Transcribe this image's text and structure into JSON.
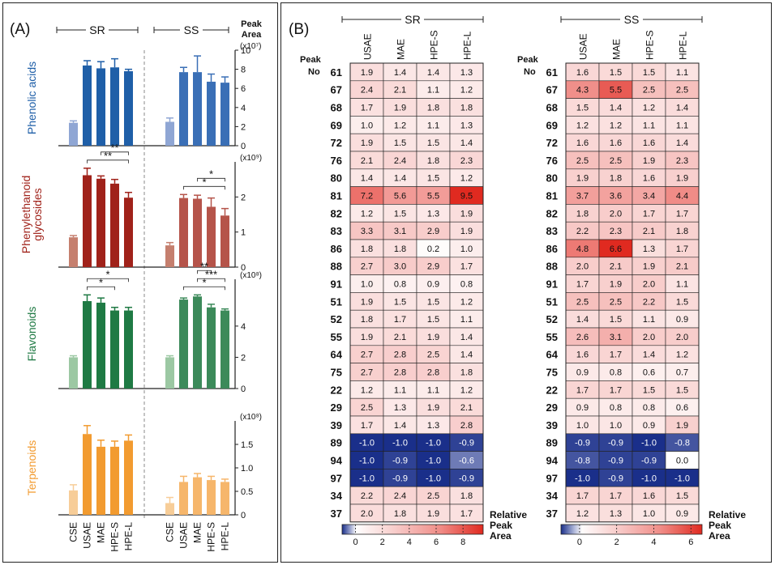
{
  "panel_a": {
    "label": "(A)",
    "group_left": "SR",
    "group_right": "SS",
    "peak_area_label": [
      "Peak",
      "Area"
    ],
    "x_labels": [
      "CSE",
      "USAE",
      "MAE",
      "HPE-S",
      "HPE-L",
      "CSE",
      "USAE",
      "MAE",
      "HPE-S",
      "HPE-L"
    ]
  },
  "colors": {
    "phenolic": "#1f5fa8",
    "phenolic_light": "#8fa6d4",
    "phenolic_ss": "#3a6fb6",
    "phenyl": "#a0221a",
    "phenyl_light": "#c57f6e",
    "phenyl_ss": "#b5544a",
    "flavonoid": "#1f7a44",
    "flavonoid_light": "#9cc8a3",
    "flavonoid_ss": "#3c8a5a",
    "terpenoid": "#f29b30",
    "terpenoid_light": "#f7cd98",
    "terpenoid_ss": "#f6b66b",
    "heat_low": "#1a2f8a",
    "heat_high": "#e02a20"
  },
  "chart_data": [
    {
      "type": "bar",
      "title": "Phenolic acids",
      "ylabel": "(x10⁷)",
      "ylim": [
        0,
        10
      ],
      "yticks": [
        0,
        2,
        4,
        6,
        8,
        10
      ],
      "ytick_labels": [
        "0",
        "2",
        "4",
        "6",
        "8",
        "10"
      ],
      "categories": [
        "CSE",
        "USAE",
        "MAE",
        "HPE-S",
        "HPE-L"
      ],
      "series": [
        {
          "name": "SR",
          "values": [
            2.4,
            8.4,
            8.1,
            8.2,
            7.8
          ],
          "errors": [
            0.2,
            0.5,
            0.7,
            0.9,
            0.2
          ]
        },
        {
          "name": "SS",
          "values": [
            2.5,
            7.7,
            7.7,
            6.7,
            6.6
          ],
          "errors": [
            0.4,
            0.5,
            1.7,
            0.8,
            0.6
          ]
        }
      ],
      "significance": []
    },
    {
      "type": "bar",
      "title": "Phenylethanoid glycosides",
      "title_lines": [
        "Phenylethanoid",
        "glycosides"
      ],
      "ylabel": "(x10⁹)",
      "ylim": [
        0,
        3
      ],
      "yticks": [
        0,
        1,
        2
      ],
      "ytick_labels": [
        "0",
        "1",
        "2"
      ],
      "categories": [
        "CSE",
        "USAE",
        "MAE",
        "HPE-S",
        "HPE-L"
      ],
      "series": [
        {
          "name": "SR",
          "values": [
            0.85,
            2.62,
            2.52,
            2.38,
            1.98
          ],
          "errors": [
            0.05,
            0.2,
            0.08,
            0.12,
            0.15
          ]
        },
        {
          "name": "SS",
          "values": [
            0.62,
            1.97,
            1.95,
            1.72,
            1.47
          ],
          "errors": [
            0.08,
            0.1,
            0.1,
            0.25,
            0.2
          ]
        }
      ],
      "significance": [
        {
          "series": "SR",
          "from": 1,
          "to": 4,
          "label": "**"
        },
        {
          "series": "SR",
          "from": 2,
          "to": 4,
          "label": "**"
        },
        {
          "series": "SS",
          "from": 1,
          "to": 4,
          "label": "*"
        },
        {
          "series": "SS",
          "from": 2,
          "to": 4,
          "label": "*"
        }
      ]
    },
    {
      "type": "bar",
      "title": "Flavonoids",
      "ylabel": "(x10⁸)",
      "ylim": [
        0,
        7
      ],
      "yticks": [
        0,
        2,
        4
      ],
      "ytick_labels": [
        "0",
        "2",
        "4"
      ],
      "categories": [
        "CSE",
        "USAE",
        "MAE",
        "HPE-S",
        "HPE-L"
      ],
      "series": [
        {
          "name": "SR",
          "values": [
            2.0,
            5.6,
            5.5,
            5.0,
            5.0
          ],
          "errors": [
            0.1,
            0.4,
            0.3,
            0.2,
            0.2
          ]
        },
        {
          "name": "SS",
          "values": [
            2.0,
            5.7,
            5.9,
            5.2,
            5.0
          ],
          "errors": [
            0.1,
            0.1,
            0.1,
            0.2,
            0.1
          ]
        }
      ],
      "significance": [
        {
          "series": "SR",
          "from": 1,
          "to": 3,
          "label": "*"
        },
        {
          "series": "SR",
          "from": 1,
          "to": 4,
          "label": "*"
        },
        {
          "series": "SS",
          "from": 1,
          "to": 4,
          "label": "*"
        },
        {
          "series": "SS",
          "from": 2,
          "to": 4,
          "label": "***"
        },
        {
          "series": "SS",
          "from": 2,
          "to": 3,
          "label": "**"
        }
      ]
    },
    {
      "type": "bar",
      "title": "Terpenoids",
      "ylabel": "(x10⁸)",
      "ylim": [
        0,
        2
      ],
      "yticks": [
        0,
        0.5,
        1.0,
        1.5
      ],
      "ytick_labels": [
        "0",
        "0.5",
        "1.0",
        "1.5"
      ],
      "categories": [
        "CSE",
        "USAE",
        "MAE",
        "HPE-S",
        "HPE-L"
      ],
      "series": [
        {
          "name": "SR",
          "values": [
            0.52,
            1.72,
            1.45,
            1.45,
            1.58
          ],
          "errors": [
            0.12,
            0.18,
            0.14,
            0.12,
            0.12
          ]
        },
        {
          "name": "SS",
          "values": [
            0.25,
            0.7,
            0.8,
            0.74,
            0.7
          ],
          "errors": [
            0.12,
            0.12,
            0.08,
            0.08,
            0.06
          ]
        }
      ],
      "significance": []
    },
    {
      "type": "heatmap",
      "title": "SR",
      "columns": [
        "USAE",
        "MAE",
        "HPE-S",
        "HPE-L"
      ],
      "rows": [
        "61",
        "67",
        "68",
        "69",
        "72",
        "76",
        "80",
        "81",
        "82",
        "83",
        "86",
        "88",
        "91",
        "51",
        "52",
        "55",
        "64",
        "75",
        "22",
        "29",
        "39",
        "89",
        "94",
        "97",
        "34",
        "37"
      ],
      "values": [
        [
          1.9,
          1.4,
          1.4,
          1.3
        ],
        [
          2.4,
          2.1,
          1.1,
          1.2
        ],
        [
          1.7,
          1.9,
          1.8,
          1.8
        ],
        [
          1.0,
          1.2,
          1.1,
          1.3
        ],
        [
          1.9,
          1.5,
          1.5,
          1.4
        ],
        [
          2.1,
          2.4,
          1.8,
          2.3
        ],
        [
          1.4,
          1.4,
          1.5,
          1.2
        ],
        [
          7.2,
          5.6,
          5.5,
          9.5
        ],
        [
          1.2,
          1.5,
          1.3,
          1.9
        ],
        [
          3.3,
          3.1,
          2.9,
          1.9
        ],
        [
          1.8,
          1.8,
          0.2,
          1.0
        ],
        [
          2.7,
          3.0,
          2.9,
          1.7
        ],
        [
          1.0,
          0.8,
          0.9,
          0.8
        ],
        [
          1.9,
          1.5,
          1.5,
          1.2
        ],
        [
          1.8,
          1.7,
          1.5,
          1.1
        ],
        [
          1.9,
          2.1,
          1.9,
          1.4
        ],
        [
          2.7,
          2.8,
          2.5,
          1.4
        ],
        [
          2.7,
          2.8,
          2.8,
          1.8
        ],
        [
          1.2,
          1.1,
          1.1,
          1.2
        ],
        [
          2.5,
          1.3,
          1.9,
          2.1
        ],
        [
          1.7,
          1.4,
          1.3,
          2.8
        ],
        [
          -1.0,
          -1.0,
          -1.0,
          -0.9
        ],
        [
          -1.0,
          -0.9,
          -1.0,
          -0.6
        ],
        [
          -1.0,
          -0.9,
          -1.0,
          -0.9
        ],
        [
          2.2,
          2.4,
          2.5,
          1.8
        ],
        [
          2.0,
          1.8,
          1.9,
          1.7
        ]
      ],
      "colorbar_ticks": [
        "0",
        "2",
        "4",
        "6",
        "8"
      ],
      "colorbar_range": [
        -1,
        9.5
      ],
      "colorbar_label": [
        "Relative",
        "Peak",
        "Area"
      ]
    },
    {
      "type": "heatmap",
      "title": "SS",
      "columns": [
        "USAE",
        "MAE",
        "HPE-S",
        "HPE-L"
      ],
      "rows": [
        "61",
        "67",
        "68",
        "69",
        "72",
        "76",
        "80",
        "81",
        "82",
        "83",
        "86",
        "88",
        "91",
        "51",
        "52",
        "55",
        "64",
        "75",
        "22",
        "29",
        "39",
        "89",
        "94",
        "97",
        "34",
        "37"
      ],
      "values": [
        [
          1.6,
          1.5,
          1.5,
          1.1
        ],
        [
          4.3,
          5.5,
          2.5,
          2.5
        ],
        [
          1.5,
          1.4,
          1.2,
          1.4
        ],
        [
          1.2,
          1.2,
          1.1,
          1.1
        ],
        [
          1.6,
          1.6,
          1.6,
          1.4
        ],
        [
          2.5,
          2.5,
          1.9,
          2.3
        ],
        [
          1.9,
          1.8,
          1.6,
          1.9
        ],
        [
          3.7,
          3.6,
          3.4,
          4.4
        ],
        [
          1.8,
          2.0,
          1.7,
          1.7
        ],
        [
          2.2,
          2.3,
          2.1,
          1.8
        ],
        [
          4.8,
          6.6,
          1.3,
          1.7
        ],
        [
          2.0,
          2.1,
          1.9,
          2.1
        ],
        [
          1.7,
          1.9,
          2.0,
          1.1
        ],
        [
          2.5,
          2.5,
          2.2,
          1.5
        ],
        [
          1.4,
          1.5,
          1.1,
          0.9
        ],
        [
          2.6,
          3.1,
          2.0,
          2.0
        ],
        [
          1.6,
          1.7,
          1.4,
          1.2
        ],
        [
          0.9,
          0.8,
          0.6,
          0.7
        ],
        [
          1.7,
          1.7,
          1.5,
          1.5
        ],
        [
          0.9,
          0.8,
          0.8,
          0.6
        ],
        [
          1.0,
          1.0,
          0.9,
          1.9
        ],
        [
          -0.9,
          -0.9,
          -1.0,
          -0.8
        ],
        [
          -0.8,
          -0.9,
          -0.9,
          0.0
        ],
        [
          -1.0,
          -0.9,
          -1.0,
          -1.0
        ],
        [
          1.7,
          1.7,
          1.6,
          1.5
        ],
        [
          1.2,
          1.3,
          1.0,
          0.9
        ]
      ],
      "colorbar_ticks": [
        "0",
        "2",
        "4",
        "6"
      ],
      "colorbar_range": [
        -1,
        6.6
      ],
      "colorbar_label": [
        "Relative",
        "Peak",
        "Area"
      ]
    }
  ],
  "panel_b": {
    "label": "(B)",
    "peak_no_label": [
      "Peak",
      "No"
    ]
  }
}
